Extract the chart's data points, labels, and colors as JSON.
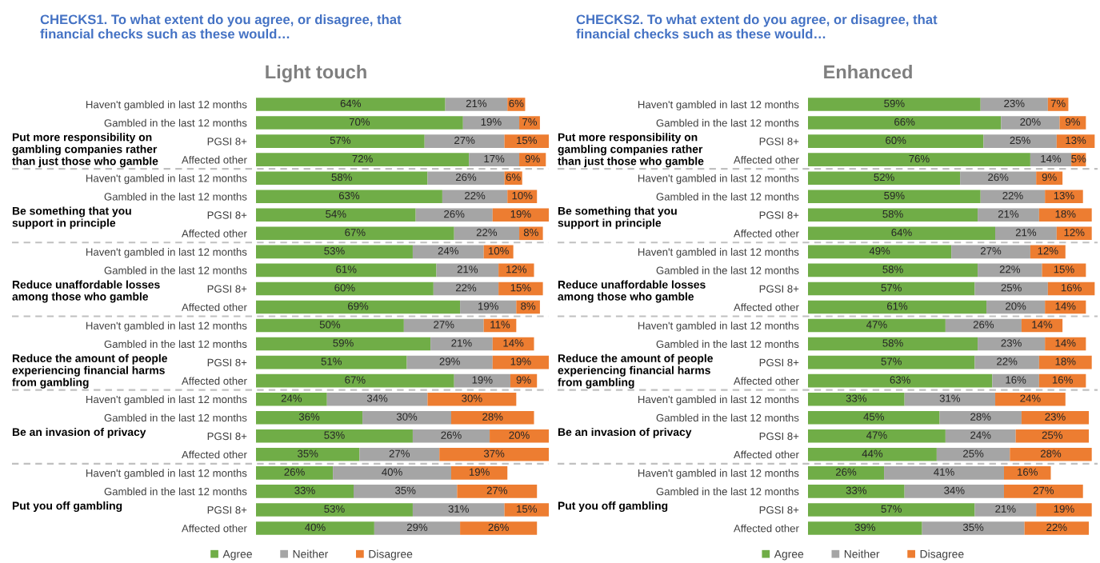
{
  "chart_data": [
    {
      "type": "bar",
      "orientation": "horizontal",
      "stacked": true,
      "tick_labels": "y",
      "legend": "bottom",
      "title": "CHECKS1. To what extent do you agree, or disagree, that financial checks such as these would…",
      "subtitle": "Light touch",
      "annotations": [
        "Put more responsibility on gambling companies rather than just those who gamble",
        "Be something that you support in principle",
        "Reduce unaffordable losses among those who gamble",
        "Reduce the amount of people experiencing financial harms from gambling",
        "Be an invasion of privacy",
        "Put you off gambling"
      ],
      "categories": [
        "Haven't gambled in last 12 months",
        "Gambled in the last 12 months",
        "PGSI 8+",
        "Affected other",
        "Haven't gambled in last 12 months",
        "Gambled in the last 12 months",
        "PGSI 8+",
        "Affected other",
        "Haven't gambled in last 12 months",
        "Gambled in the last 12 months",
        "PGSI 8+",
        "Affected other",
        "Haven't gambled in last 12 months",
        "Gambled in the last 12 months",
        "PGSI 8+",
        "Affected other",
        "Haven't gambled in last 12 months",
        "Gambled in the last 12 months",
        "PGSI 8+",
        "Affected other",
        "Haven't gambled in last 12 months",
        "Gambled in the last 12 months",
        "PGSI 8+",
        "Affected other"
      ],
      "series": [
        {
          "name": "Agree",
          "color": "#70ad47",
          "values": [
            64,
            70,
            57,
            72,
            58,
            63,
            54,
            67,
            53,
            61,
            60,
            69,
            50,
            59,
            51,
            67,
            24,
            36,
            53,
            35,
            26,
            33,
            53,
            40
          ],
          "value_labels": [
            "64%",
            "70%",
            "57%",
            "72%",
            "58%",
            "63%",
            "54%",
            "67%",
            "53%",
            "61%",
            "60%",
            "69%",
            "50%",
            "59%",
            "51%",
            "67%",
            "24%",
            "36%",
            "53%",
            "35%",
            "26%",
            "33%",
            "53%",
            "40%"
          ]
        },
        {
          "name": "Neither",
          "color": "#a5a5a5",
          "values": [
            21,
            19,
            27,
            17,
            26,
            22,
            26,
            22,
            24,
            21,
            22,
            19,
            27,
            21,
            29,
            19,
            34,
            30,
            26,
            27,
            40,
            35,
            31,
            29
          ],
          "value_labels": [
            "21%",
            "19%",
            "27%",
            "17%",
            "26%",
            "22%",
            "26%",
            "22%",
            "24%",
            "21%",
            "22%",
            "19%",
            "27%",
            "21%",
            "29%",
            "19%",
            "34%",
            "30%",
            "26%",
            "27%",
            "40%",
            "35%",
            "31%",
            "29%"
          ]
        },
        {
          "name": "Disagree",
          "color": "#ed7d31",
          "values": [
            6,
            7,
            15,
            9,
            6,
            10,
            19,
            8,
            10,
            12,
            15,
            8,
            11,
            14,
            19,
            9,
            30,
            28,
            20,
            37,
            19,
            27,
            15,
            26
          ],
          "value_labels": [
            "6%",
            "7%",
            "15%",
            "9%",
            "6%",
            "10%",
            "19%",
            "8%",
            "10%",
            "12%",
            "15%",
            "8%",
            "11%",
            "14%",
            "19%",
            "9%",
            "30%",
            "28%",
            "20%",
            "37%",
            "19%",
            "27%",
            "15%",
            "26%"
          ]
        }
      ]
    },
    {
      "type": "bar",
      "orientation": "horizontal",
      "stacked": true,
      "tick_labels": "y",
      "legend": "bottom",
      "title": "CHECKS2. To what extent do you agree, or disagree, that financial checks such as these would…",
      "subtitle": "Enhanced",
      "annotations": [
        "Put more responsibility on gambling companies rather than just those who gamble",
        "Be something that you support in principle",
        "Reduce unaffordable losses among those who gamble",
        "Reduce the amount of people experiencing financial harms from gambling",
        "Be an invasion of privacy",
        "Put you off gambling"
      ],
      "categories": [
        "Haven't gambled in last 12 months",
        "Gambled in the last 12 months",
        "PGSI 8+",
        "Affected other",
        "Haven't gambled in last 12 months",
        "Gambled in the last 12 months",
        "PGSI 8+",
        "Affected other",
        "Haven't gambled in last 12 months",
        "Gambled in the last 12 months",
        "PGSI 8+",
        "Affected other",
        "Haven't gambled in last 12 months",
        "Gambled in the last 12 months",
        "PGSI 8+",
        "Affected other",
        "Haven't gambled in last 12 months",
        "Gambled in the last 12 months",
        "PGSI 8+",
        "Affected other",
        "Haven't gambled in last 12 months",
        "Gambled in the last 12 months",
        "PGSI 8+",
        "Affected other"
      ],
      "series": [
        {
          "name": "Agree",
          "color": "#70ad47",
          "values": [
            59,
            66,
            60,
            76,
            52,
            59,
            58,
            64,
            49,
            58,
            57,
            61,
            47,
            58,
            57,
            63,
            33,
            45,
            47,
            44,
            26,
            33,
            57,
            39
          ],
          "value_labels": [
            "59%",
            "66%",
            "60%",
            "76%",
            "52%",
            "59%",
            "58%",
            "64%",
            "49%",
            "58%",
            "57%",
            "61%",
            "47%",
            "58%",
            "57%",
            "63%",
            "33%",
            "45%",
            "47%",
            "44%",
            "26%",
            "33%",
            "57%",
            "39%"
          ]
        },
        {
          "name": "Neither",
          "color": "#a5a5a5",
          "values": [
            23,
            20,
            25,
            14,
            26,
            22,
            21,
            21,
            27,
            22,
            25,
            20,
            26,
            23,
            22,
            16,
            31,
            28,
            24,
            25,
            41,
            34,
            21,
            35
          ],
          "value_labels": [
            "23%",
            "20%",
            "25%",
            "14%",
            "26%",
            "22%",
            "21%",
            "21%",
            "27%",
            "22%",
            "25%",
            "20%",
            "26%",
            "23%",
            "22%",
            "16%",
            "31%",
            "28%",
            "24%",
            "25%",
            "41%",
            "34%",
            "21%",
            "35%"
          ]
        },
        {
          "name": "Disagree",
          "color": "#ed7d31",
          "values": [
            7,
            9,
            13,
            5,
            9,
            13,
            18,
            12,
            12,
            15,
            16,
            14,
            14,
            14,
            18,
            16,
            24,
            23,
            25,
            28,
            16,
            27,
            19,
            22
          ],
          "value_labels": [
            "7%",
            "9%",
            "13%",
            "5%",
            "9%",
            "13%",
            "18%",
            "12%",
            "12%",
            "15%",
            "16%",
            "14%",
            "14%",
            "14%",
            "18%",
            "16%",
            "24%",
            "23%",
            "25%",
            "28%",
            "16%",
            "27%",
            "19%",
            "22%"
          ]
        }
      ]
    }
  ]
}
